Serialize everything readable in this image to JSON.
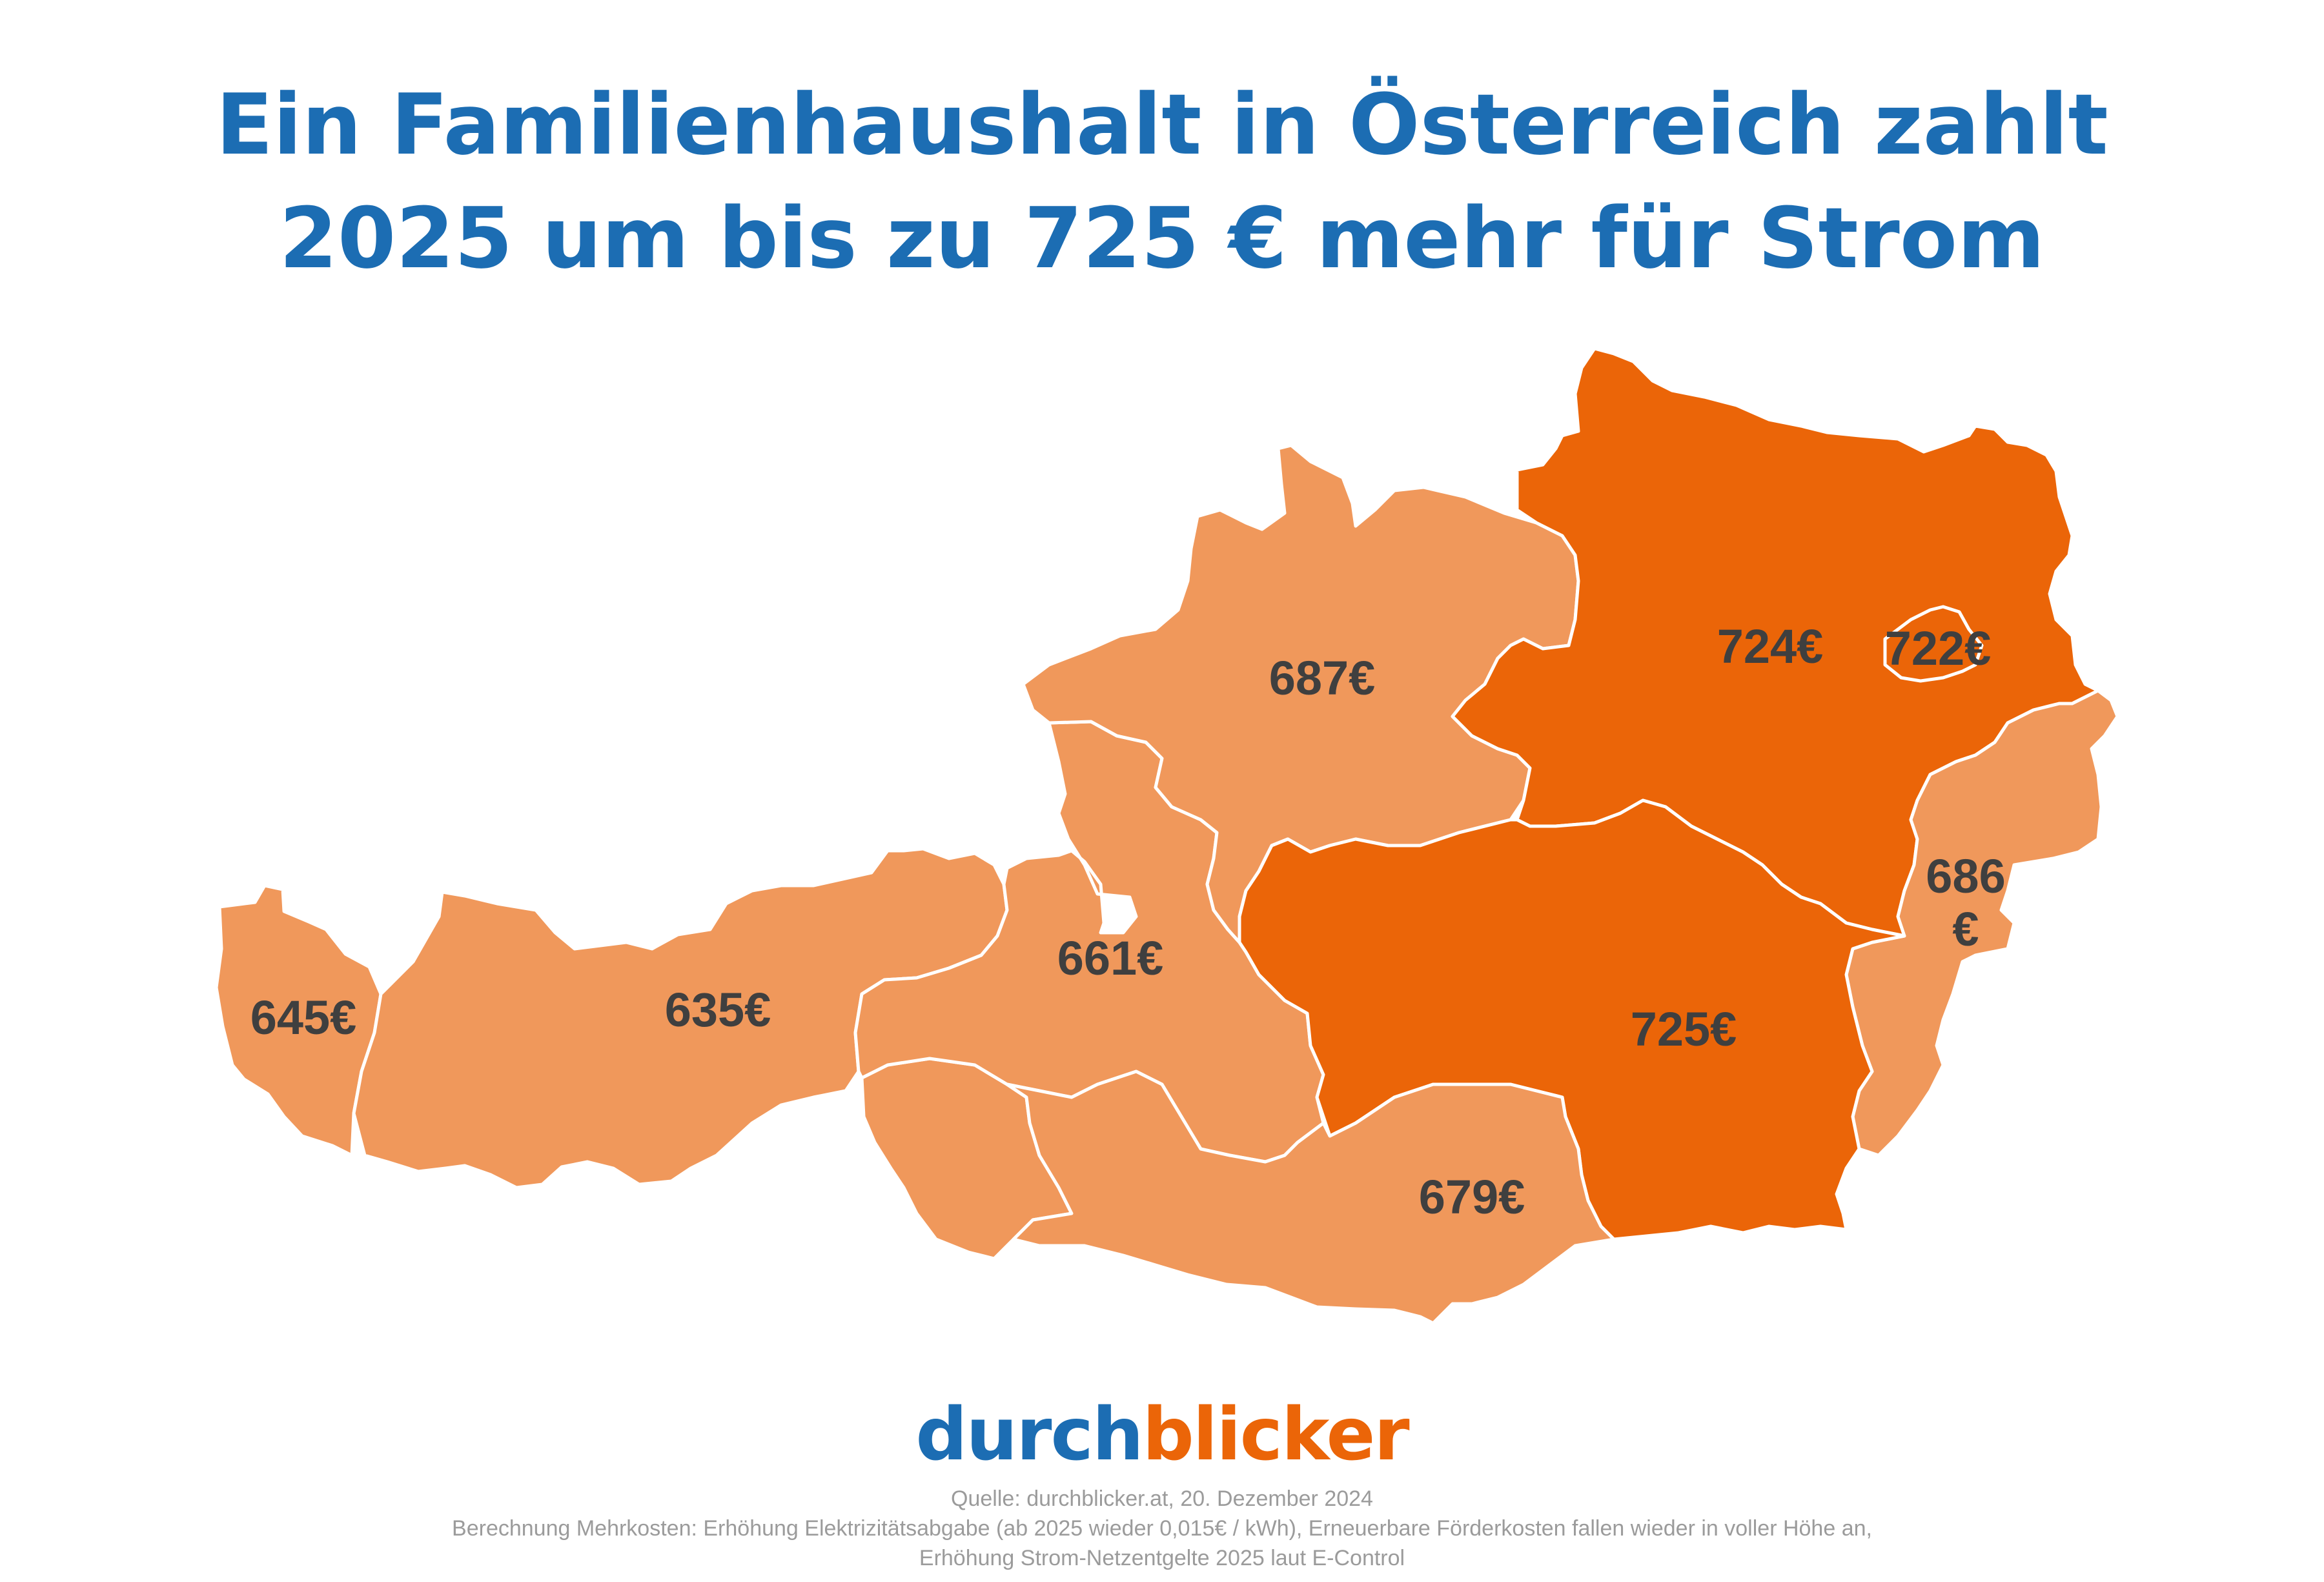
{
  "title": {
    "line1": "Ein Familienhaushalt in Österreich zahlt",
    "line2": "2025 um bis zu 725 € mehr für Strom"
  },
  "colors": {
    "title": "#1c6db3",
    "high": "#eb6508",
    "low": "#f0985b",
    "label": "#3f3f3f",
    "border": "#ffffff",
    "footer": "#9b9b9b"
  },
  "regions": {
    "vorarlberg": {
      "value": "645€",
      "tier": "low"
    },
    "tirol": {
      "value": "635€",
      "tier": "low"
    },
    "salzburg": {
      "value": "661€",
      "tier": "low"
    },
    "oberoesterreich": {
      "value": "687€",
      "tier": "low"
    },
    "niederoesterreich": {
      "value": "724€",
      "tier": "high"
    },
    "wien": {
      "value": "722€",
      "tier": "high"
    },
    "burgenland": {
      "value_line1": "686",
      "value_line2": "€",
      "tier": "low"
    },
    "steiermark": {
      "value": "725€",
      "tier": "high"
    },
    "kaernten": {
      "value": "679€",
      "tier": "low"
    }
  },
  "logo": {
    "part1": "durch",
    "part2": "blicker"
  },
  "footer": {
    "source": "Quelle: durchblicker.at, 20. Dezember 2024",
    "note_line1": "Berechnung Mehrkosten: Erhöhung Elektrizitätsabgabe (ab 2025 wieder 0,015€ / kWh), Erneuerbare Förderkosten fallen wieder in voller Höhe an,",
    "note_line2": "Erhöhung Strom-Netzentgelte 2025 laut E-Control"
  }
}
